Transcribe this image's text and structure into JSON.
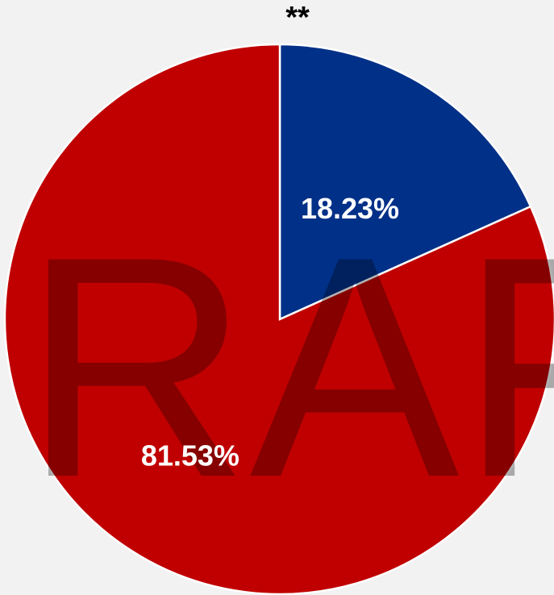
{
  "chart_data": {
    "type": "pie",
    "title": "",
    "annotation": "**",
    "watermark": "RAF",
    "slices": [
      {
        "label": "18.23%",
        "value": 18.23,
        "color": "#003087"
      },
      {
        "label": "81.53%",
        "value": 81.53,
        "color": "#c00000"
      }
    ],
    "start_angle_deg": 0,
    "direction": "clockwise"
  }
}
